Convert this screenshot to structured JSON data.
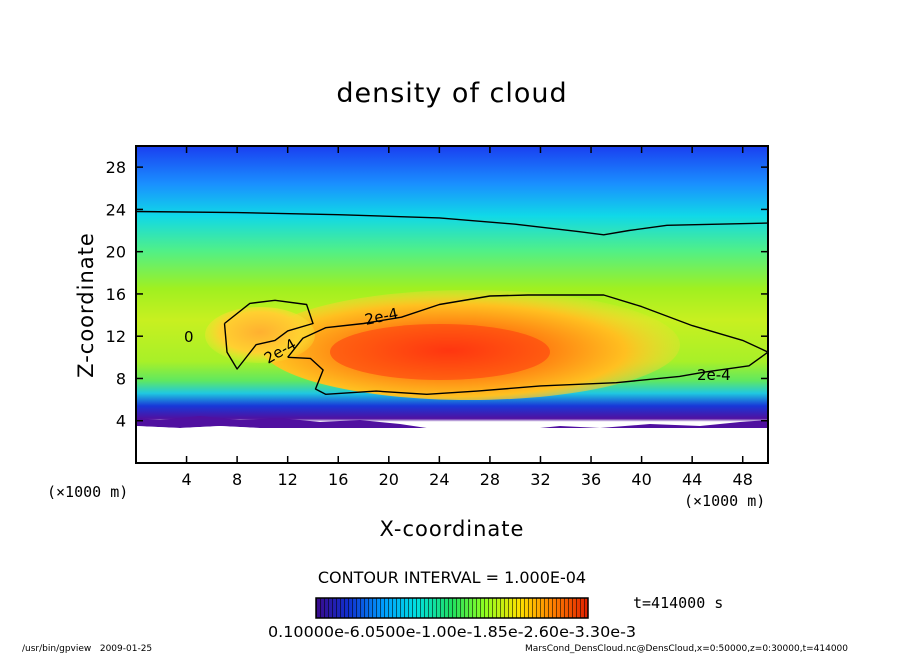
{
  "chart_data": {
    "type": "heatmap",
    "title": "density of cloud",
    "xlabel": "X-coordinate",
    "ylabel": "Z-coordinate",
    "x_unit": "(×1000 m)",
    "y_unit": "(×1000 m)",
    "xlim": [
      0,
      50
    ],
    "ylim": [
      0,
      30
    ],
    "x_ticks": [
      4,
      8,
      12,
      16,
      20,
      24,
      28,
      32,
      36,
      40,
      44,
      48
    ],
    "y_ticks": [
      4,
      8,
      12,
      16,
      20,
      24,
      28
    ],
    "contour_interval_label": "CONTOUR INTERVAL = 1.000E-04",
    "time_label": "t=414000 s",
    "contour_labels": [
      "2e-4",
      "2e-4",
      "2e-4",
      "0"
    ],
    "colorbar": {
      "label_text": "0.10000e-6.0500e-1.00e-1.85e-2.60e-3.30e-3",
      "stops": [
        "#3a0a8a",
        "#1030d0",
        "#00a0ff",
        "#00e0e0",
        "#20e060",
        "#90ff20",
        "#ffe000",
        "#ff8000",
        "#e02000"
      ]
    },
    "field_regions": [
      {
        "region": "top",
        "z_range": [
          26,
          30
        ],
        "level": "low",
        "color": "#1a4ff0"
      },
      {
        "region": "upper",
        "z_range": [
          21,
          26
        ],
        "level": "low-mid",
        "color": "#20d8e8"
      },
      {
        "region": "middle",
        "z_range": [
          14,
          21
        ],
        "level": "mid",
        "color": "#8cf020"
      },
      {
        "region": "core",
        "x_range": [
          15,
          38
        ],
        "z_range": [
          8,
          15
        ],
        "level": "high",
        "color": "#ff5a10"
      },
      {
        "region": "base",
        "z_range": [
          3,
          6
        ],
        "level": "low",
        "color": "#1838d8"
      }
    ],
    "contours": [
      {
        "name": "top-contour",
        "points": [
          [
            0,
            23.8
          ],
          [
            8,
            23.7
          ],
          [
            16,
            23.5
          ],
          [
            24,
            23.2
          ],
          [
            30,
            22.6
          ],
          [
            35,
            21.9
          ],
          [
            37,
            21.6
          ],
          [
            39,
            22.0
          ],
          [
            42,
            22.5
          ],
          [
            46,
            22.6
          ],
          [
            50,
            22.7
          ]
        ]
      },
      {
        "name": "cloud-2e-4-left",
        "points": [
          [
            7,
            13.2
          ],
          [
            9,
            15.1
          ],
          [
            11,
            15.4
          ],
          [
            13.5,
            15.0
          ],
          [
            14,
            13.2
          ],
          [
            12,
            12.5
          ],
          [
            11,
            11.6
          ],
          [
            9.5,
            11.2
          ],
          [
            8,
            8.9
          ],
          [
            7.2,
            10.5
          ],
          [
            7,
            13.2
          ]
        ]
      },
      {
        "name": "cloud-2e-4-main",
        "points": [
          [
            12,
            10.0
          ],
          [
            13.2,
            11.8
          ],
          [
            15,
            12.8
          ],
          [
            18,
            13.2
          ],
          [
            21,
            13.8
          ],
          [
            24,
            15.0
          ],
          [
            28,
            15.8
          ],
          [
            31,
            15.9
          ],
          [
            37,
            15.9
          ],
          [
            40,
            14.8
          ],
          [
            44,
            13.0
          ],
          [
            48,
            11.6
          ],
          [
            50,
            10.5
          ],
          [
            48.5,
            9.2
          ],
          [
            45,
            8.6
          ],
          [
            43,
            8.2
          ],
          [
            38,
            7.6
          ],
          [
            32,
            7.3
          ],
          [
            27,
            6.8
          ],
          [
            23,
            6.5
          ],
          [
            19,
            6.8
          ],
          [
            15,
            6.5
          ],
          [
            14.2,
            7.0
          ],
          [
            14.8,
            8.8
          ],
          [
            13.8,
            9.9
          ],
          [
            12,
            10.0
          ]
        ]
      }
    ]
  },
  "footer": {
    "left": "/usr/bin/gpview   2009-01-25",
    "right": "MarsCond_DensCloud.nc@DensCloud,x=0:50000,z=0:30000,t=414000"
  }
}
